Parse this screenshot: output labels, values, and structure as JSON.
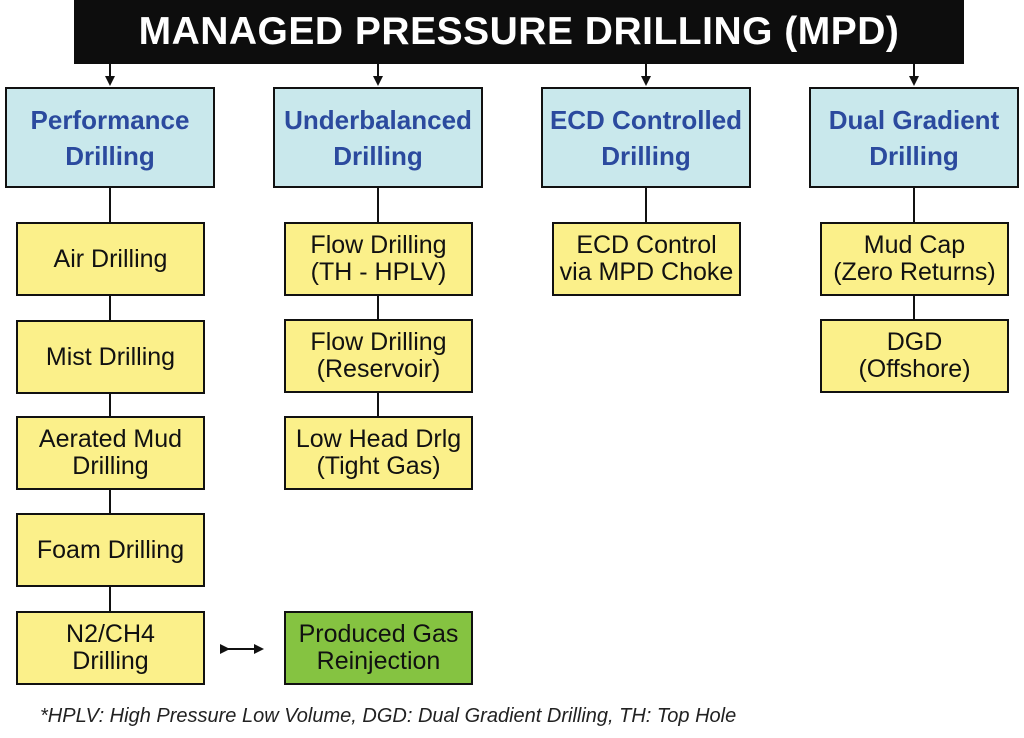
{
  "title": "MANAGED PRESSURE DRILLING (MPD)",
  "columns": [
    {
      "name": "Performance\nDrilling",
      "items": [
        "Air Drilling",
        "Mist Drilling",
        "Aerated Mud\nDrilling",
        "Foam Drilling",
        "N2/CH4\nDrilling"
      ]
    },
    {
      "name": "Underbalanced\nDrilling",
      "items": [
        "Flow Drilling\n(TH - HPLV)",
        "Flow Drilling\n(Reservoir)",
        "Low Head Drlg\n(Tight Gas)"
      ]
    },
    {
      "name": "ECD Controlled\nDrilling",
      "items": [
        "ECD Control\nvia MPD Choke"
      ]
    },
    {
      "name": "Dual Gradient\nDrilling",
      "items": [
        "Mud Cap\n(Zero Returns)",
        "DGD\n(Offshore)"
      ]
    }
  ],
  "linked_box": {
    "label": "Produced Gas\nReinjection",
    "color": "#85c341"
  },
  "colors": {
    "title_bg": "#0d0d0d",
    "category_bg": "#c9e8ec",
    "category_text": "#2b4a9e",
    "item_bg": "#fbf08a"
  },
  "footnote": "*HPLV: High Pressure Low Volume, DGD: Dual Gradient Drilling, TH: Top Hole"
}
